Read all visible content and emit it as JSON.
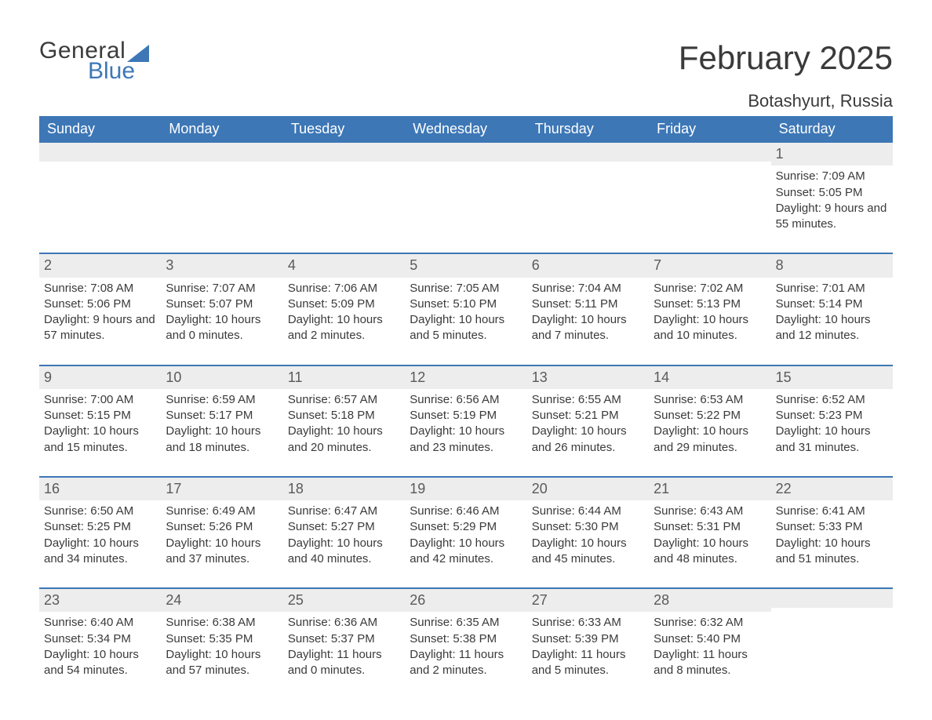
{
  "brand": {
    "line1": "General",
    "line2": "Blue",
    "accent_color": "#3d77b6"
  },
  "title": "February 2025",
  "location": "Botashyurt, Russia",
  "colors": {
    "header_bg": "#3d77b6",
    "header_text": "#ffffff",
    "daynum_bg": "#ededed",
    "text": "#3a3a3a",
    "rule": "#3d77b6",
    "page_bg": "#ffffff"
  },
  "weekday_labels": [
    "Sunday",
    "Monday",
    "Tuesday",
    "Wednesday",
    "Thursday",
    "Friday",
    "Saturday"
  ],
  "field_labels": {
    "sunrise": "Sunrise",
    "sunset": "Sunset",
    "daylight": "Daylight"
  },
  "weeks": [
    [
      null,
      null,
      null,
      null,
      null,
      null,
      {
        "n": "1",
        "sunrise": "7:09 AM",
        "sunset": "5:05 PM",
        "daylight": "9 hours and 55 minutes."
      }
    ],
    [
      {
        "n": "2",
        "sunrise": "7:08 AM",
        "sunset": "5:06 PM",
        "daylight": "9 hours and 57 minutes."
      },
      {
        "n": "3",
        "sunrise": "7:07 AM",
        "sunset": "5:07 PM",
        "daylight": "10 hours and 0 minutes."
      },
      {
        "n": "4",
        "sunrise": "7:06 AM",
        "sunset": "5:09 PM",
        "daylight": "10 hours and 2 minutes."
      },
      {
        "n": "5",
        "sunrise": "7:05 AM",
        "sunset": "5:10 PM",
        "daylight": "10 hours and 5 minutes."
      },
      {
        "n": "6",
        "sunrise": "7:04 AM",
        "sunset": "5:11 PM",
        "daylight": "10 hours and 7 minutes."
      },
      {
        "n": "7",
        "sunrise": "7:02 AM",
        "sunset": "5:13 PM",
        "daylight": "10 hours and 10 minutes."
      },
      {
        "n": "8",
        "sunrise": "7:01 AM",
        "sunset": "5:14 PM",
        "daylight": "10 hours and 12 minutes."
      }
    ],
    [
      {
        "n": "9",
        "sunrise": "7:00 AM",
        "sunset": "5:15 PM",
        "daylight": "10 hours and 15 minutes."
      },
      {
        "n": "10",
        "sunrise": "6:59 AM",
        "sunset": "5:17 PM",
        "daylight": "10 hours and 18 minutes."
      },
      {
        "n": "11",
        "sunrise": "6:57 AM",
        "sunset": "5:18 PM",
        "daylight": "10 hours and 20 minutes."
      },
      {
        "n": "12",
        "sunrise": "6:56 AM",
        "sunset": "5:19 PM",
        "daylight": "10 hours and 23 minutes."
      },
      {
        "n": "13",
        "sunrise": "6:55 AM",
        "sunset": "5:21 PM",
        "daylight": "10 hours and 26 minutes."
      },
      {
        "n": "14",
        "sunrise": "6:53 AM",
        "sunset": "5:22 PM",
        "daylight": "10 hours and 29 minutes."
      },
      {
        "n": "15",
        "sunrise": "6:52 AM",
        "sunset": "5:23 PM",
        "daylight": "10 hours and 31 minutes."
      }
    ],
    [
      {
        "n": "16",
        "sunrise": "6:50 AM",
        "sunset": "5:25 PM",
        "daylight": "10 hours and 34 minutes."
      },
      {
        "n": "17",
        "sunrise": "6:49 AM",
        "sunset": "5:26 PM",
        "daylight": "10 hours and 37 minutes."
      },
      {
        "n": "18",
        "sunrise": "6:47 AM",
        "sunset": "5:27 PM",
        "daylight": "10 hours and 40 minutes."
      },
      {
        "n": "19",
        "sunrise": "6:46 AM",
        "sunset": "5:29 PM",
        "daylight": "10 hours and 42 minutes."
      },
      {
        "n": "20",
        "sunrise": "6:44 AM",
        "sunset": "5:30 PM",
        "daylight": "10 hours and 45 minutes."
      },
      {
        "n": "21",
        "sunrise": "6:43 AM",
        "sunset": "5:31 PM",
        "daylight": "10 hours and 48 minutes."
      },
      {
        "n": "22",
        "sunrise": "6:41 AM",
        "sunset": "5:33 PM",
        "daylight": "10 hours and 51 minutes."
      }
    ],
    [
      {
        "n": "23",
        "sunrise": "6:40 AM",
        "sunset": "5:34 PM",
        "daylight": "10 hours and 54 minutes."
      },
      {
        "n": "24",
        "sunrise": "6:38 AM",
        "sunset": "5:35 PM",
        "daylight": "10 hours and 57 minutes."
      },
      {
        "n": "25",
        "sunrise": "6:36 AM",
        "sunset": "5:37 PM",
        "daylight": "11 hours and 0 minutes."
      },
      {
        "n": "26",
        "sunrise": "6:35 AM",
        "sunset": "5:38 PM",
        "daylight": "11 hours and 2 minutes."
      },
      {
        "n": "27",
        "sunrise": "6:33 AM",
        "sunset": "5:39 PM",
        "daylight": "11 hours and 5 minutes."
      },
      {
        "n": "28",
        "sunrise": "6:32 AM",
        "sunset": "5:40 PM",
        "daylight": "11 hours and 8 minutes."
      },
      null
    ]
  ]
}
